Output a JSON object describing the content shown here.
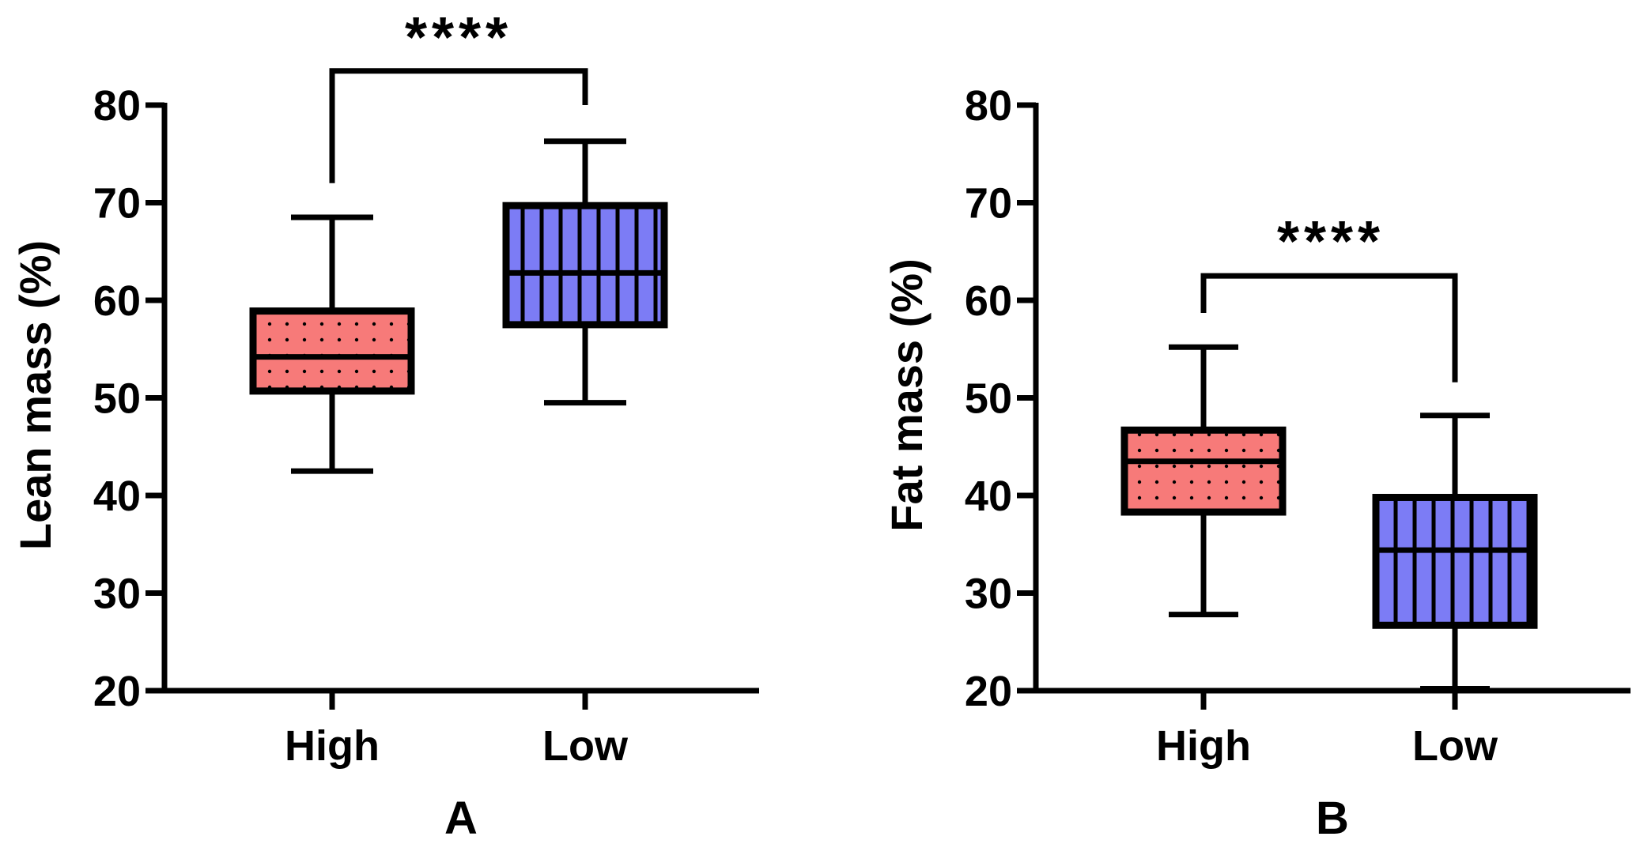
{
  "colors": {
    "high_fill": "#f77a79",
    "low_fill": "#7c7cf5",
    "stroke": "#000000"
  },
  "chart_data": [
    {
      "type": "box",
      "panel_label": "A",
      "ylabel": "Lean mass (%)",
      "xlabel": "",
      "ylim": [
        20,
        80
      ],
      "yticks": [
        20,
        30,
        40,
        50,
        60,
        70,
        80
      ],
      "categories": [
        "High",
        "Low"
      ],
      "boxes": [
        {
          "name": "High",
          "min": 42.5,
          "q1": 50.7,
          "median": 54.2,
          "q3": 58.9,
          "max": 68.5,
          "pattern": "dots"
        },
        {
          "name": "Low",
          "min": 49.5,
          "q1": 57.5,
          "median": 62.8,
          "q3": 69.7,
          "max": 76.3,
          "pattern": "vertical-lines"
        }
      ],
      "significance": {
        "label": "****",
        "left_y": 72,
        "right_y": 80,
        "top_y": 83.5
      }
    },
    {
      "type": "box",
      "panel_label": "B",
      "ylabel": "Fat mass (%)",
      "xlabel": "",
      "ylim": [
        20,
        80
      ],
      "yticks": [
        20,
        30,
        40,
        50,
        60,
        70,
        80
      ],
      "categories": [
        "High",
        "Low"
      ],
      "boxes": [
        {
          "name": "High",
          "min": 27.8,
          "q1": 38.3,
          "median": 43.5,
          "q3": 46.7,
          "max": 55.2,
          "pattern": "dots"
        },
        {
          "name": "Low",
          "min": 20.2,
          "q1": 26.7,
          "median": 34.4,
          "q3": 39.8,
          "max": 48.2,
          "pattern": "vertical-lines"
        }
      ],
      "significance": {
        "label": "****",
        "left_y": 58.7,
        "right_y": 51.6,
        "top_y": 62.5
      }
    }
  ]
}
